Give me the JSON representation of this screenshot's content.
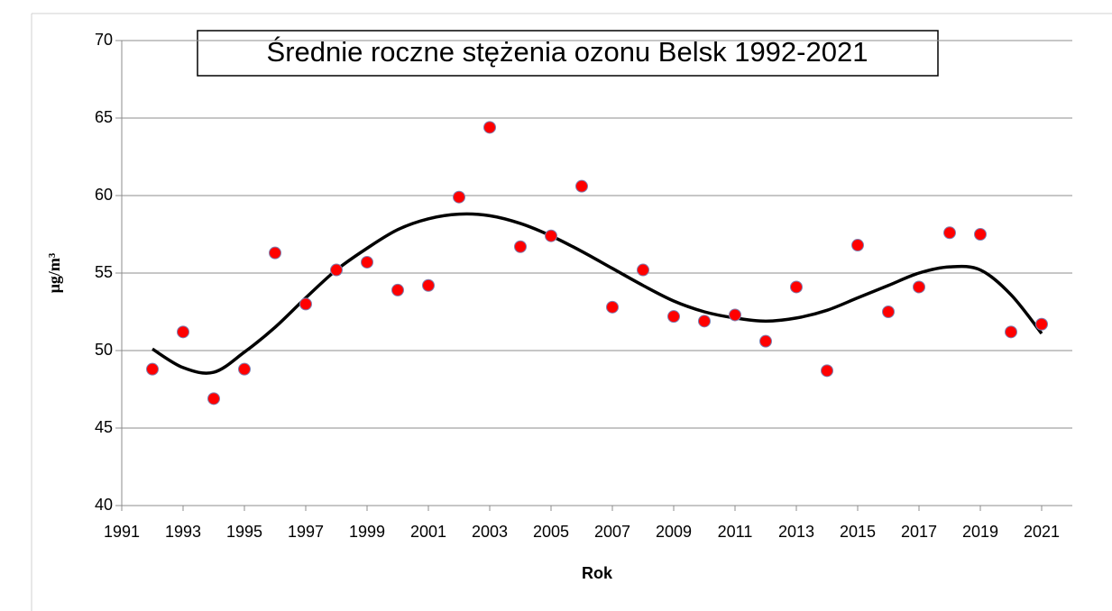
{
  "chart_data": {
    "type": "scatter",
    "title": "Średnie roczne stężenia ozonu Belsk 1992-2021",
    "x_label": "Rok",
    "y_label": "μg/m³",
    "x": [
      1992,
      1993,
      1994,
      1995,
      1996,
      1997,
      1998,
      1999,
      2000,
      2001,
      2002,
      2003,
      2004,
      2005,
      2006,
      2007,
      2008,
      2009,
      2010,
      2011,
      2012,
      2013,
      2014,
      2015,
      2016,
      2017,
      2018,
      2019,
      2020,
      2021
    ],
    "series": [
      {
        "color": "#ff0000",
        "style": "markers",
        "values": [
          48.8,
          51.2,
          46.9,
          48.8,
          56.3,
          53.0,
          55.2,
          55.7,
          53.9,
          54.2,
          59.9,
          64.4,
          56.7,
          57.4,
          60.6,
          52.8,
          55.2,
          52.2,
          51.9,
          52.3,
          50.6,
          54.1,
          48.7,
          56.8,
          52.5,
          54.1,
          57.6,
          57.5,
          51.2,
          51.7
        ]
      },
      {
        "color": "#000000",
        "style": "line",
        "values": [
          50.1,
          48.9,
          48.6,
          49.9,
          51.5,
          53.4,
          55.2,
          56.6,
          57.8,
          58.5,
          58.8,
          58.7,
          58.2,
          57.4,
          56.4,
          55.3,
          54.2,
          53.2,
          52.5,
          52.1,
          51.9,
          52.1,
          52.6,
          53.4,
          54.2,
          55.0,
          55.4,
          55.2,
          53.6,
          51.1
        ]
      }
    ],
    "xlim": [
      1991,
      2022
    ],
    "ylim": [
      40,
      70
    ],
    "xticks": [
      1991,
      1993,
      1995,
      1997,
      1999,
      2001,
      2003,
      2005,
      2007,
      2009,
      2011,
      2013,
      2015,
      2017,
      2019,
      2021
    ],
    "yticks": [
      40,
      45,
      50,
      55,
      60,
      65,
      70
    ],
    "grid": true
  }
}
